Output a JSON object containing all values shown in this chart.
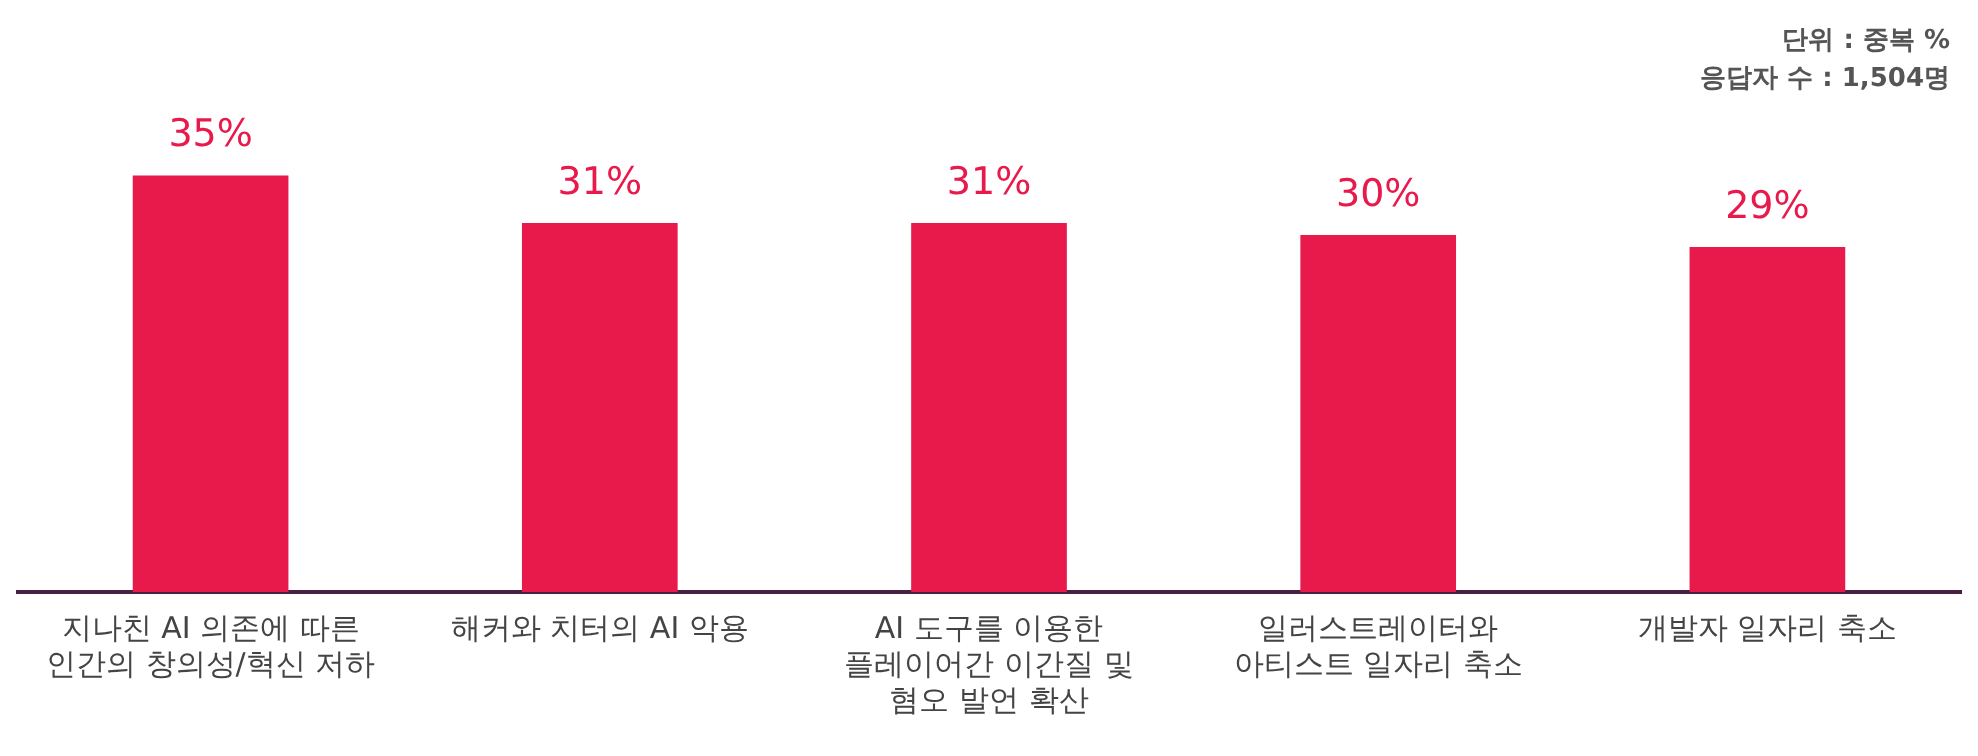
{
  "chart_data": {
    "type": "bar",
    "categories": [
      "지나친 AI 의존에 따른 인간의 창의성/혁신 저하",
      "해커와 치터의 AI 악용",
      "AI 도구를 이용한 플레이어간 이간질 및 혐오 발언 확산",
      "일러스트레이터와 아티스트 일자리 축소",
      "개발자 일자리 축소"
    ],
    "values": [
      35,
      31,
      31,
      30,
      29
    ],
    "value_labels": [
      "35%",
      "31%",
      "31%",
      "30%",
      "29%"
    ],
    "color": "#e8194b",
    "annotations": [
      "단위 : 중복 %",
      "응답자 수 : 1,504명"
    ],
    "grid": false,
    "legend": false,
    "tick_labels": "x"
  }
}
